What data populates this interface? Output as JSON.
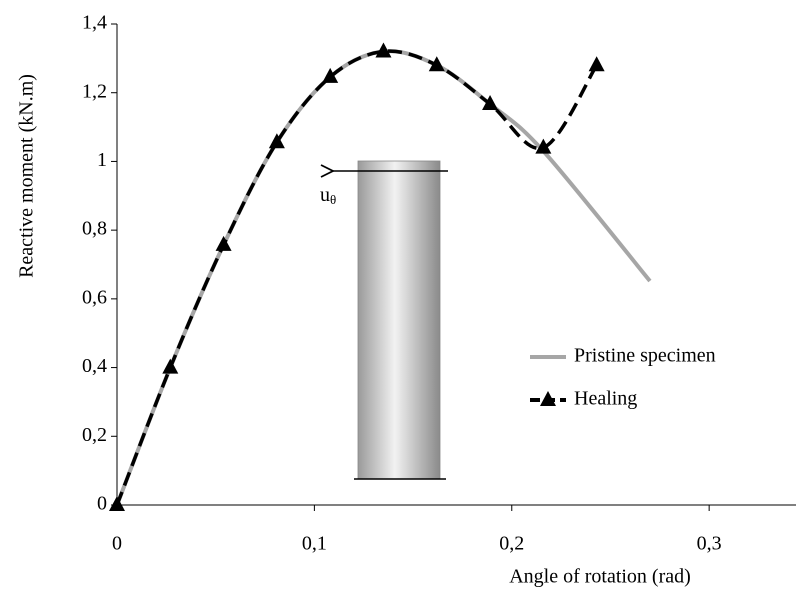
{
  "chart_data": {
    "type": "line",
    "x_label": "Angle of rotation (rad)",
    "y_label": "Reactive moment (kN.m)",
    "annotation": {
      "symbol": "u",
      "subscript": "θ"
    },
    "xlim": [
      0,
      0.344
    ],
    "ylim": [
      0,
      1.4
    ],
    "xticks": [
      0,
      {
        "value": 0.1,
        "label": "0,1"
      },
      {
        "value": 0.2,
        "label": "0,2"
      },
      {
        "value": 0.3,
        "label": "0,3"
      }
    ],
    "yticks": [
      0,
      {
        "value": 0.2,
        "label": "0,2"
      },
      {
        "value": 0.4,
        "label": "0,4"
      },
      {
        "value": 0.6,
        "label": "0,6"
      },
      {
        "value": 0.8,
        "label": "0,8"
      },
      1,
      {
        "value": 1.2,
        "label": "1,2"
      },
      {
        "value": 1.4,
        "label": "1,4"
      }
    ],
    "grid": false,
    "legend": "right",
    "series": [
      {
        "name": "Pristine specimen",
        "color": "#a6a6a6",
        "style": "solid",
        "marker": "none",
        "x": [
          0,
          0.027,
          0.054,
          0.081,
          0.108,
          0.135,
          0.162,
          0.189,
          0.216,
          0.27
        ],
        "values": [
          0,
          0.4,
          0.757,
          1.056,
          1.246,
          1.32,
          1.28,
          1.167,
          1.03,
          0.652
        ]
      },
      {
        "name": "Healing",
        "color": "#000000",
        "style": "dashed",
        "marker": "triangle",
        "x": [
          0,
          0.027,
          0.054,
          0.081,
          0.108,
          0.135,
          0.162,
          0.189,
          0.216,
          0.243
        ],
        "values": [
          0,
          0.4,
          0.757,
          1.056,
          1.246,
          1.32,
          1.28,
          1.167,
          1.04,
          1.28
        ]
      }
    ]
  }
}
